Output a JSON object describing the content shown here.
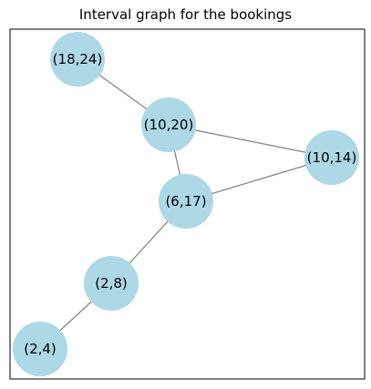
{
  "title": "Interval graph for the bookings",
  "colors": {
    "node": "#add8e6",
    "edge": "#808080",
    "frame": "#000000"
  },
  "nodes": [
    {
      "id": "n18_24",
      "label": "(18,24)"
    },
    {
      "id": "n10_20",
      "label": "(10,20)"
    },
    {
      "id": "n10_14",
      "label": "(10,14)"
    },
    {
      "id": "n6_17",
      "label": "(6,17)"
    },
    {
      "id": "n2_8",
      "label": "(2,8)"
    },
    {
      "id": "n2_4",
      "label": "(2,4)"
    }
  ],
  "edges": [
    [
      "n18_24",
      "n10_20"
    ],
    [
      "n10_20",
      "n10_14"
    ],
    [
      "n10_20",
      "n6_17"
    ],
    [
      "n10_14",
      "n6_17"
    ],
    [
      "n6_17",
      "n2_8"
    ],
    [
      "n2_8",
      "n2_4"
    ]
  ]
}
